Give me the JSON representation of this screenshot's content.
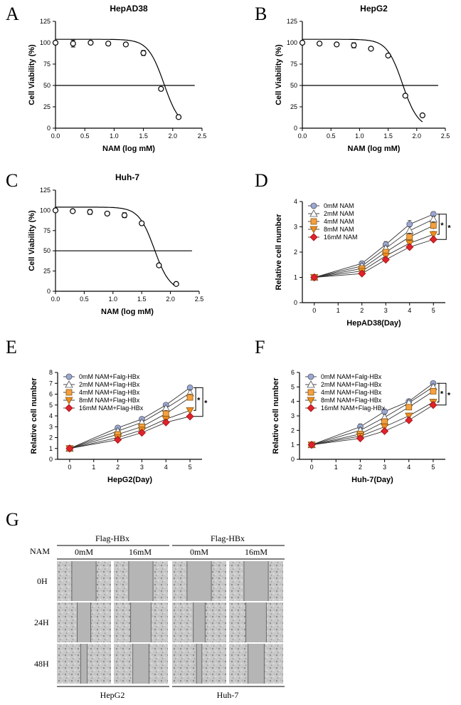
{
  "panel_letters": [
    "A",
    "B",
    "C",
    "D",
    "E",
    "F",
    "G"
  ],
  "colors": {
    "c0": "#9aa8d8",
    "c1": "#ffffff",
    "c2": "#f5a040",
    "c3": "#f08c1e",
    "c4": "#e0222a",
    "line": "#000000"
  },
  "chart_data": [
    {
      "id": "A",
      "type": "scatter",
      "title": "HepAD38",
      "xlabel": "NAM (log mM)",
      "ylabel": "Cell Viability (%)",
      "xlim": [
        0,
        2.5
      ],
      "ylim": [
        0,
        125
      ],
      "xticks": [
        "0.0",
        "0.5",
        "1.0",
        "1.5",
        "2.0",
        "2.5"
      ],
      "yticks": [
        "0",
        "25",
        "50",
        "75",
        "100",
        "125"
      ],
      "x": [
        0,
        0.3,
        0.6,
        0.9,
        1.2,
        1.5,
        1.8,
        2.1
      ],
      "y": [
        100,
        99,
        100,
        99,
        98,
        88,
        46,
        13
      ],
      "err": [
        2,
        4,
        1,
        1,
        1,
        3,
        0,
        0
      ],
      "fit": {
        "top": 104,
        "ic50_log": 1.85,
        "hill": 3.2
      },
      "hline": 50
    },
    {
      "id": "B",
      "type": "scatter",
      "title": "HepG2",
      "xlabel": "NAM (log mM)",
      "ylabel": "Cell Viability (%)",
      "xlim": [
        0,
        2.5
      ],
      "ylim": [
        0,
        125
      ],
      "xticks": [
        "0.0",
        "0.5",
        "1.0",
        "1.5",
        "2.0",
        "2.5"
      ],
      "yticks": [
        "0",
        "25",
        "50",
        "75",
        "100",
        "125"
      ],
      "x": [
        0,
        0.3,
        0.6,
        0.9,
        1.2,
        1.5,
        1.8,
        2.1
      ],
      "y": [
        100,
        99,
        98,
        97,
        93,
        85,
        38,
        15
      ],
      "err": [
        1,
        1,
        2,
        3,
        1,
        1,
        0,
        0
      ],
      "fit": {
        "top": 104,
        "ic50_log": 1.75,
        "hill": 3.2
      },
      "hline": 50
    },
    {
      "id": "C",
      "type": "scatter",
      "title": "Huh-7",
      "xlabel": "NAM (log mM)",
      "ylabel": "Cell Viability (%)",
      "xlim": [
        0,
        2.5
      ],
      "ylim": [
        0,
        125
      ],
      "xticks": [
        "0.0",
        "0.5",
        "1.0",
        "1.5",
        "2.0",
        "2.5"
      ],
      "yticks": [
        "0",
        "25",
        "50",
        "75",
        "100",
        "125"
      ],
      "x": [
        0,
        0.3,
        0.6,
        0.9,
        1.2,
        1.5,
        1.8,
        2.1
      ],
      "y": [
        100,
        99,
        98,
        96,
        94,
        84,
        32,
        9
      ],
      "err": [
        1,
        1,
        3,
        1,
        3,
        1,
        0,
        0
      ],
      "fit": {
        "top": 104,
        "ic50_log": 1.72,
        "hill": 3.2
      },
      "hline": 50
    },
    {
      "id": "D",
      "type": "line",
      "xlabel": "HepAD38(Day)",
      "ylabel": "Relative cell number",
      "xlim": [
        -0.5,
        5.5
      ],
      "ylim": [
        0,
        4
      ],
      "xticks": [
        "0",
        "1",
        "2",
        "3",
        "4",
        "5"
      ],
      "yticks": [
        "0",
        "1",
        "2",
        "3",
        "4"
      ],
      "x": [
        0,
        2,
        3,
        4,
        5
      ],
      "series": [
        {
          "name": "0mM NAM",
          "values": [
            1,
            1.55,
            2.3,
            3.1,
            3.5
          ],
          "err": [
            0.05,
            0.1,
            0.12,
            0.15,
            0.1
          ]
        },
        {
          "name": "2mM NAM",
          "values": [
            1,
            1.45,
            2.15,
            2.85,
            3.3
          ],
          "err": [
            0.05,
            0.1,
            0.1,
            0.15,
            0.12
          ]
        },
        {
          "name": "4mM NAM",
          "values": [
            1,
            1.35,
            2.0,
            2.6,
            3.05
          ],
          "err": [
            0.05,
            0.1,
            0.1,
            0.15,
            0.15
          ]
        },
        {
          "name": "8mM NAM",
          "values": [
            1,
            1.25,
            1.85,
            2.35,
            2.7
          ],
          "err": [
            0.05,
            0.08,
            0.1,
            0.12,
            0.12
          ]
        },
        {
          "name": "16mM NAM",
          "values": [
            1,
            1.15,
            1.7,
            2.2,
            2.5
          ],
          "err": [
            0.05,
            0.08,
            0.1,
            0.1,
            0.1
          ]
        }
      ],
      "annotations": [
        "*",
        "*"
      ]
    },
    {
      "id": "E",
      "type": "line",
      "xlabel": "HepG2(Day)",
      "ylabel": "Relative cell number",
      "xlim": [
        -0.5,
        5.5
      ],
      "ylim": [
        0,
        8
      ],
      "xticks": [
        "0",
        "1",
        "2",
        "3",
        "4",
        "5"
      ],
      "yticks": [
        "0",
        "1",
        "2",
        "3",
        "4",
        "5",
        "6",
        "7",
        "8"
      ],
      "x": [
        0,
        2,
        3,
        4,
        5
      ],
      "series": [
        {
          "name": "0mM NAM+Falg-HBx",
          "values": [
            1,
            2.9,
            3.7,
            5.0,
            6.6
          ],
          "err": [
            0.05,
            0.2,
            0.2,
            0.2,
            0.2
          ]
        },
        {
          "name": "2mM NAM+Flag-HBx",
          "values": [
            1,
            2.6,
            3.4,
            4.7,
            6.1
          ],
          "err": [
            0.05,
            0.2,
            0.2,
            0.2,
            0.3
          ]
        },
        {
          "name": "4mM NAM+Flag-HBx",
          "values": [
            1,
            2.3,
            3.0,
            4.2,
            5.7
          ],
          "err": [
            0.05,
            0.2,
            0.2,
            0.3,
            0.3
          ]
        },
        {
          "name": "8mM NAM+Flag-HBx",
          "values": [
            1,
            2.0,
            2.7,
            3.7,
            4.5
          ],
          "err": [
            0.05,
            0.2,
            0.2,
            0.2,
            0.2
          ]
        },
        {
          "name": "16mM NAM+Flag-HBx",
          "values": [
            1,
            1.8,
            2.45,
            3.4,
            3.95
          ],
          "err": [
            0.05,
            0.15,
            0.15,
            0.25,
            0.2
          ]
        }
      ],
      "annotations": [
        "*",
        "*"
      ]
    },
    {
      "id": "F",
      "type": "line",
      "xlabel": "Huh-7(Day)",
      "ylabel": "Relative cell number",
      "xlim": [
        -0.5,
        5.5
      ],
      "ylim": [
        0,
        6
      ],
      "xticks": [
        "0",
        "1",
        "2",
        "3",
        "4",
        "5"
      ],
      "yticks": [
        "0",
        "1",
        "2",
        "3",
        "4",
        "5",
        "6"
      ],
      "x": [
        0,
        2,
        3,
        4,
        5
      ],
      "series": [
        {
          "name": "0mM NAM+Falg-HBx",
          "values": [
            1,
            2.25,
            3.3,
            4.0,
            5.25
          ],
          "err": [
            0.05,
            0.2,
            0.15,
            0.15,
            0.15
          ]
        },
        {
          "name": "2mM NAM+Flag-HBx",
          "values": [
            1,
            2.0,
            2.9,
            3.9,
            5.0
          ],
          "err": [
            0.05,
            0.2,
            0.2,
            0.15,
            0.2
          ]
        },
        {
          "name": "4mM NAM+Flag-HBx",
          "values": [
            1,
            1.75,
            2.6,
            3.6,
            4.7
          ],
          "err": [
            0.05,
            0.2,
            0.2,
            0.15,
            0.2
          ]
        },
        {
          "name": "8mM NAM+Flag-HBx",
          "values": [
            1,
            1.6,
            2.25,
            3.0,
            3.95
          ],
          "err": [
            0.05,
            0.2,
            0.2,
            0.2,
            0.2
          ]
        },
        {
          "name": "16mM NAM+Flag-HBx",
          "values": [
            1,
            1.45,
            1.95,
            2.7,
            3.75
          ],
          "err": [
            0.05,
            0.15,
            0.15,
            0.2,
            0.2
          ]
        }
      ],
      "annotations": [
        "*",
        "*"
      ]
    }
  ],
  "panel_g": {
    "groups": [
      "Flag-HBx",
      "Flag-HBx"
    ],
    "row_header": "NAM",
    "columns": [
      "0mM",
      "16mM",
      "0mM",
      "16mM"
    ],
    "rows": [
      "0H",
      "24H",
      "48H"
    ],
    "cell_lines": [
      "HepG2",
      "Huh-7"
    ],
    "gap_fraction": [
      [
        0.45,
        0.45,
        0.45,
        0.45
      ],
      [
        0.25,
        0.38,
        0.22,
        0.38
      ],
      [
        0.12,
        0.3,
        0.1,
        0.3
      ]
    ]
  }
}
